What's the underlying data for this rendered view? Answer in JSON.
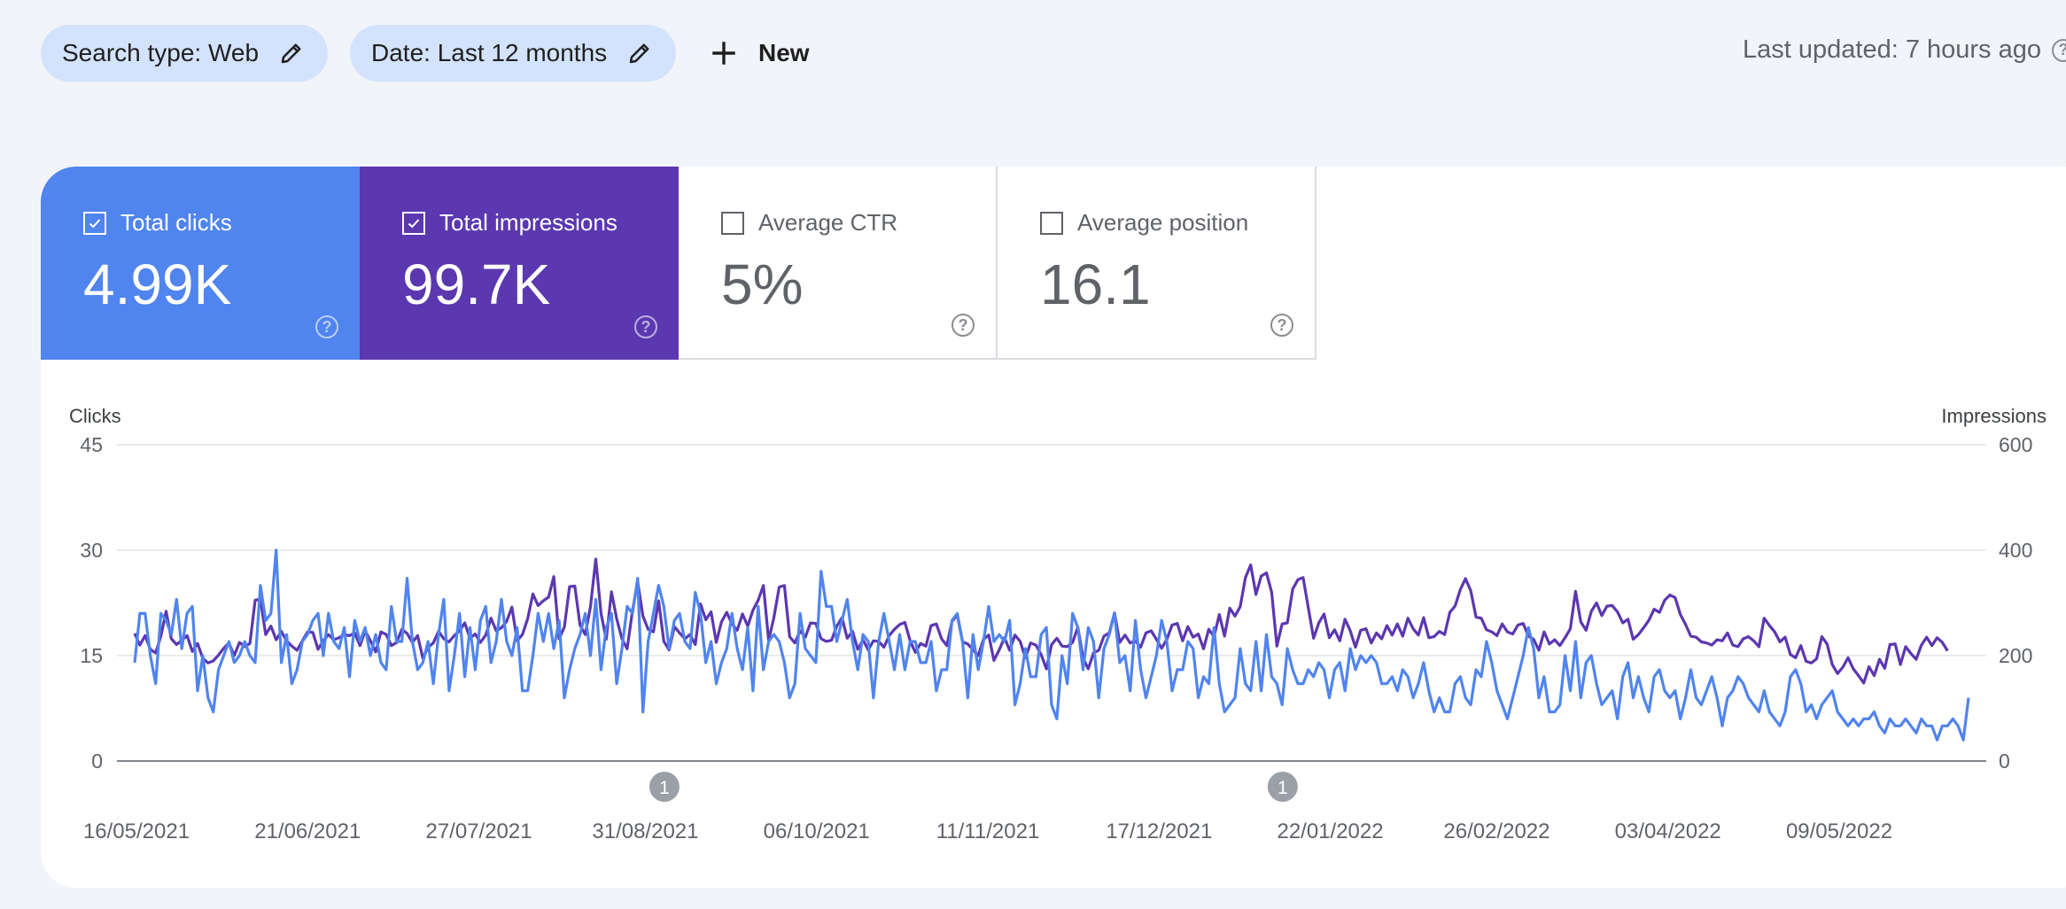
{
  "filters": {
    "search_type": "Search type: Web",
    "date": "Date: Last 12 months",
    "new_label": "New"
  },
  "status": {
    "last_updated": "Last updated: 7 hours ago"
  },
  "metrics": [
    {
      "label": "Total clicks",
      "value": "4.99K",
      "checked": true,
      "color": "#5084ee"
    },
    {
      "label": "Total impressions",
      "value": "99.7K",
      "checked": true,
      "color": "#5b37b0"
    },
    {
      "label": "Average CTR",
      "value": "5%",
      "checked": false
    },
    {
      "label": "Average position",
      "value": "16.1",
      "checked": false
    }
  ],
  "colors": {
    "clicks": "#5084ee",
    "impressions": "#5b37b0",
    "chip": "#d3e3fd",
    "annotation": "#9aa0a6"
  },
  "chart_data": {
    "type": "line",
    "left_axis_title": "Clicks",
    "right_axis_title": "Impressions",
    "left_ticks": [
      "45",
      "30",
      "15",
      "0"
    ],
    "right_ticks": [
      "600",
      "400",
      "200",
      "0"
    ],
    "ylim_left": [
      0,
      45
    ],
    "ylim_right": [
      0,
      600
    ],
    "grid": true,
    "x_labels": [
      "16/05/2021",
      "21/06/2021",
      "27/07/2021",
      "31/08/2021",
      "06/10/2021",
      "11/11/2021",
      "17/12/2021",
      "22/01/2022",
      "26/02/2022",
      "03/04/2022",
      "09/05/2022"
    ],
    "annotations": [
      {
        "date": "04/09/2021",
        "label": "1"
      },
      {
        "date": "12/01/2022",
        "label": "1"
      }
    ],
    "series": [
      {
        "name": "Clicks",
        "axis": "left",
        "values": [
          14,
          21,
          21,
          15,
          11,
          21,
          20,
          18,
          23,
          16,
          21,
          22,
          10,
          15,
          9,
          7,
          13,
          15,
          17,
          14,
          15,
          17,
          15,
          14,
          25,
          20,
          21,
          30,
          14,
          18,
          11,
          13,
          17,
          18,
          20,
          21,
          15,
          21,
          17,
          16,
          19,
          12,
          20,
          17,
          19,
          15,
          18,
          14,
          13,
          22,
          17,
          17,
          26,
          17,
          13,
          14,
          17,
          11,
          18,
          23,
          10,
          15,
          21,
          12,
          19,
          13,
          20,
          22,
          14,
          17,
          23,
          17,
          15,
          19,
          10,
          10,
          15,
          21,
          17,
          21,
          16,
          20,
          9,
          13,
          16,
          18,
          21,
          15,
          23,
          13,
          19,
          21,
          11,
          16,
          22,
          21,
          26,
          7,
          17,
          21,
          25,
          22,
          16,
          20,
          21,
          17,
          16,
          24,
          21,
          14,
          17,
          11,
          14,
          16,
          21,
          16,
          13,
          19,
          10,
          22,
          13,
          17,
          18,
          17,
          14,
          9,
          11,
          21,
          16,
          15,
          14,
          27,
          22,
          22,
          17,
          20,
          23,
          17,
          13,
          18,
          17,
          9,
          17,
          21,
          17,
          13,
          18,
          13,
          17,
          17,
          14,
          14,
          17,
          10,
          13,
          13,
          20,
          21,
          17,
          9,
          18,
          13,
          17,
          22,
          17,
          18,
          17,
          20,
          8,
          11,
          16,
          12,
          12,
          18,
          19,
          8,
          6,
          15,
          11,
          21,
          19,
          13,
          19,
          17,
          9,
          16,
          18,
          21,
          14,
          15,
          10,
          20,
          13,
          9,
          12,
          15,
          20,
          17,
          10,
          13,
          13,
          17,
          16,
          9,
          12,
          11,
          19,
          11,
          7,
          8,
          9,
          16,
          11,
          10,
          17,
          10,
          18,
          12,
          11,
          8,
          16,
          13,
          11,
          11,
          13,
          12,
          14,
          13,
          9,
          13,
          14,
          10,
          16,
          13,
          15,
          14,
          15,
          14,
          11,
          11,
          12,
          10,
          13,
          12,
          9,
          11,
          14,
          10,
          7,
          9,
          7,
          7,
          11,
          12,
          9,
          8,
          13,
          12,
          17,
          14,
          10,
          8,
          6,
          9,
          12,
          15,
          19,
          16,
          9,
          12,
          7,
          7,
          8,
          15,
          10,
          17,
          9,
          14,
          15,
          11,
          8,
          9,
          10,
          6,
          12,
          14,
          9,
          12,
          9,
          7,
          12,
          13,
          10,
          9,
          10,
          6,
          9,
          13,
          9,
          8,
          10,
          12,
          9,
          5,
          9,
          10,
          12,
          11,
          9,
          8,
          7,
          10,
          7,
          6,
          5,
          7,
          12,
          13,
          11,
          7,
          8,
          6,
          8,
          9,
          10,
          7,
          6,
          5,
          6,
          5,
          6,
          6,
          7,
          5,
          4,
          6,
          5,
          5,
          6,
          5,
          4,
          6,
          5,
          5,
          3,
          5,
          5,
          6,
          5,
          3,
          9
        ]
      },
      {
        "name": "Impressions",
        "axis": "right",
        "values": [
          242,
          220,
          238,
          212,
          205,
          237,
          284,
          232,
          221,
          229,
          238,
          208,
          223,
          195,
          186,
          190,
          201,
          214,
          224,
          200,
          225,
          217,
          223,
          305,
          307,
          240,
          256,
          230,
          246,
          228,
          218,
          210,
          228,
          245,
          244,
          212,
          228,
          240,
          230,
          234,
          240,
          238,
          243,
          219,
          247,
          228,
          207,
          245,
          240,
          219,
          225,
          250,
          242,
          225,
          238,
          195,
          216,
          224,
          246,
          232,
          226,
          238,
          247,
          262,
          233,
          241,
          225,
          239,
          271,
          247,
          253,
          265,
          292,
          228,
          240,
          270,
          317,
          295,
          304,
          311,
          350,
          232,
          254,
          331,
          332,
          258,
          240,
          293,
          383,
          280,
          231,
          321,
          270,
          232,
          213,
          285,
          340,
          275,
          250,
          245,
          304,
          227,
          211,
          255,
          243,
          232,
          240,
          221,
          298,
          268,
          283,
          225,
          264,
          282,
          260,
          248,
          279,
          256,
          286,
          305,
          333,
          229,
          272,
          330,
          333,
          236,
          224,
          247,
          235,
          262,
          261,
          232,
          227,
          229,
          256,
          272,
          233,
          246,
          212,
          230,
          211,
          228,
          227,
          216,
          238,
          250,
          259,
          263,
          228,
          206,
          223,
          218,
          257,
          260,
          232,
          219,
          265,
          277,
          226,
          222,
          211,
          200,
          231,
          239,
          191,
          211,
          234,
          210,
          239,
          227,
          196,
          224,
          220,
          202,
          175,
          221,
          233,
          218,
          217,
          225,
          254,
          195,
          175,
          205,
          210,
          237,
          243,
          281,
          225,
          239,
          224,
          228,
          216,
          243,
          247,
          231,
          214,
          231,
          258,
          261,
          228,
          255,
          235,
          241,
          213,
          250,
          236,
          278,
          237,
          290,
          275,
          293,
          348,
          372,
          316,
          351,
          357,
          320,
          218,
          260,
          262,
          326,
          344,
          348,
          290,
          233,
          262,
          279,
          234,
          249,
          228,
          269,
          247,
          216,
          248,
          251,
          224,
          243,
          232,
          257,
          239,
          260,
          237,
          271,
          251,
          239,
          272,
          234,
          236,
          246,
          240,
          282,
          294,
          325,
          346,
          323,
          273,
          271,
          249,
          245,
          238,
          260,
          245,
          241,
          258,
          261,
          237,
          231,
          210,
          245,
          222,
          230,
          219,
          234,
          251,
          322,
          264,
          248,
          284,
          300,
          276,
          294,
          295,
          283,
          262,
          269,
          231,
          240,
          253,
          267,
          288,
          282,
          305,
          315,
          310,
          278,
          259,
          237,
          235,
          226,
          224,
          220,
          230,
          228,
          243,
          220,
          217,
          232,
          236,
          228,
          217,
          271,
          257,
          245,
          226,
          235,
          202,
          196,
          219,
          189,
          186,
          194,
          236,
          222,
          183,
          166,
          178,
          196,
          175,
          162,
          148,
          179,
          162,
          193,
          176,
          221,
          222,
          183,
          217,
          204,
          193,
          220,
          235,
          219,
          234,
          225,
          209
        ]
      }
    ]
  }
}
